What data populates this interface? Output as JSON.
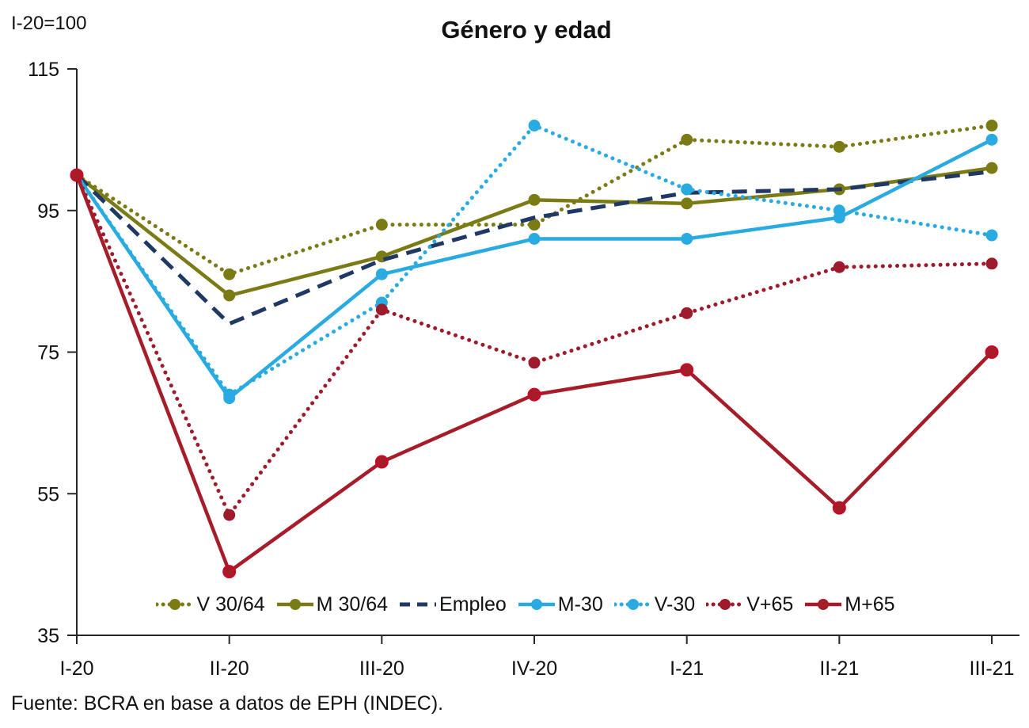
{
  "header": {
    "axis_note": "I-20=100",
    "title": "Género y edad"
  },
  "footer": {
    "source": "Fuente: BCRA en base a datos de EPH (INDEC)."
  },
  "chart_data": {
    "type": "line",
    "title": "Género y edad",
    "unit_note": "I-20=100",
    "categories": [
      "I-20",
      "II-20",
      "III-20",
      "IV-20",
      "I-21",
      "II-21",
      "III-21"
    ],
    "ylim": [
      35,
      115
    ],
    "yticks": [
      115,
      95,
      75,
      55,
      35
    ],
    "grid": false,
    "legend_position": "bottom-inside",
    "axis_color": "#262626",
    "series": [
      {
        "name": "V 30/64",
        "color": "#7B7B16",
        "style": "dotted",
        "marker": true,
        "values": [
          100,
          86,
          93,
          93,
          105,
          104,
          107
        ]
      },
      {
        "name": "M 30/64",
        "color": "#7B7B16",
        "style": "solid",
        "marker": true,
        "values": [
          100,
          83,
          88.5,
          96.5,
          96,
          98,
          101
        ]
      },
      {
        "name": "Empleo",
        "color": "#1F3864",
        "style": "dashed",
        "marker": false,
        "values": [
          100,
          79,
          88,
          94,
          97.5,
          98,
          100.5
        ]
      },
      {
        "name": "M-30",
        "color": "#29ABE2",
        "style": "solid",
        "marker": true,
        "values": [
          100,
          68.5,
          86,
          91,
          91,
          94,
          105
        ]
      },
      {
        "name": "V-30",
        "color": "#29ABE2",
        "style": "dotted",
        "marker": true,
        "values": [
          100,
          69,
          82,
          107,
          98,
          95,
          91.5
        ]
      },
      {
        "name": "V+65",
        "color": "#9E1B2C",
        "style": "dotted",
        "marker": true,
        "values": [
          100,
          52,
          81,
          73.5,
          80.5,
          87,
          87.5
        ]
      },
      {
        "name": "M+65",
        "color": "#A61C28",
        "style": "solid",
        "marker": true,
        "marker_ring": "#C9082A",
        "values": [
          100,
          44,
          59.5,
          69,
          72.5,
          53,
          75
        ]
      }
    ]
  }
}
